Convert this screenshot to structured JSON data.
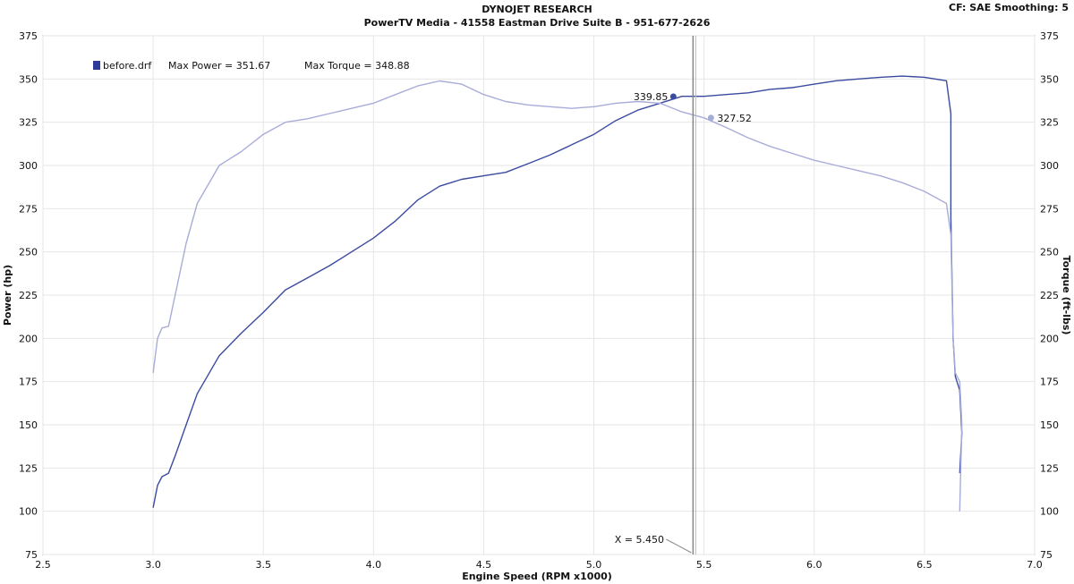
{
  "header": {
    "title": "DYNOJET RESEARCH",
    "subtitle": "PowerTV Media - 41558 Eastman Drive Suite B - 951-677-2626",
    "settings": "CF: SAE  Smoothing: 5"
  },
  "legend": {
    "run_name": "before.drf",
    "max_power_text": "Max Power = 351.67",
    "max_torque_text": "Max Torque = 348.88"
  },
  "cursor": {
    "x_value": 5.45,
    "x_label": "X = 5.450",
    "power_readout": "339.85",
    "torque_readout": "327.52"
  },
  "colors": {
    "power": "#3a4aa0",
    "torque": "#a8acd8",
    "cursor": "#888888",
    "legend_box": "#2c3a9a"
  },
  "chart_data": {
    "type": "line",
    "xlabel": "Engine Speed (RPM x1000)",
    "ylabel": "Power (hp)",
    "y2label": "Torque (ft-lbs)",
    "xlim": [
      2.5,
      7.0
    ],
    "ylim": [
      75,
      375
    ],
    "y2lim": [
      75,
      375
    ],
    "x_ticks": [
      "2.5",
      "3.0",
      "3.5",
      "4.0",
      "4.5",
      "5.0",
      "5.5",
      "6.0",
      "6.5",
      "7.0"
    ],
    "y_ticks": [
      "75",
      "100",
      "125",
      "150",
      "175",
      "200",
      "225",
      "250",
      "275",
      "300",
      "325",
      "350",
      "375"
    ],
    "grid": true,
    "series": [
      {
        "name": "Power",
        "axis": "left",
        "points": [
          [
            3.0,
            102
          ],
          [
            3.02,
            115
          ],
          [
            3.04,
            120
          ],
          [
            3.07,
            122
          ],
          [
            3.1,
            132
          ],
          [
            3.15,
            150
          ],
          [
            3.2,
            168
          ],
          [
            3.3,
            190
          ],
          [
            3.4,
            203
          ],
          [
            3.5,
            215
          ],
          [
            3.6,
            228
          ],
          [
            3.7,
            235
          ],
          [
            3.8,
            242
          ],
          [
            3.9,
            250
          ],
          [
            4.0,
            258
          ],
          [
            4.1,
            268
          ],
          [
            4.2,
            280
          ],
          [
            4.3,
            288
          ],
          [
            4.4,
            292
          ],
          [
            4.5,
            294
          ],
          [
            4.6,
            296
          ],
          [
            4.7,
            301
          ],
          [
            4.8,
            306
          ],
          [
            4.9,
            312
          ],
          [
            5.0,
            318
          ],
          [
            5.1,
            326
          ],
          [
            5.2,
            332
          ],
          [
            5.3,
            336
          ],
          [
            5.4,
            340
          ],
          [
            5.5,
            340
          ],
          [
            5.6,
            341
          ],
          [
            5.7,
            342
          ],
          [
            5.8,
            344
          ],
          [
            5.9,
            345
          ],
          [
            6.0,
            347
          ],
          [
            6.1,
            349
          ],
          [
            6.2,
            350
          ],
          [
            6.3,
            351
          ],
          [
            6.4,
            351.67
          ],
          [
            6.5,
            351
          ],
          [
            6.6,
            349
          ],
          [
            6.62,
            330
          ],
          [
            6.62,
            270
          ],
          [
            6.63,
            200
          ],
          [
            6.64,
            178
          ],
          [
            6.66,
            170
          ],
          [
            6.67,
            145
          ],
          [
            6.66,
            122
          ]
        ]
      },
      {
        "name": "Torque",
        "axis": "right",
        "points": [
          [
            3.0,
            180
          ],
          [
            3.02,
            200
          ],
          [
            3.04,
            206
          ],
          [
            3.07,
            207
          ],
          [
            3.1,
            225
          ],
          [
            3.15,
            255
          ],
          [
            3.2,
            278
          ],
          [
            3.3,
            300
          ],
          [
            3.4,
            308
          ],
          [
            3.5,
            318
          ],
          [
            3.6,
            325
          ],
          [
            3.7,
            327
          ],
          [
            3.8,
            330
          ],
          [
            3.9,
            333
          ],
          [
            4.0,
            336
          ],
          [
            4.1,
            341
          ],
          [
            4.2,
            346
          ],
          [
            4.3,
            348.88
          ],
          [
            4.4,
            347
          ],
          [
            4.5,
            341
          ],
          [
            4.6,
            337
          ],
          [
            4.7,
            335
          ],
          [
            4.8,
            334
          ],
          [
            4.9,
            333
          ],
          [
            5.0,
            334
          ],
          [
            5.1,
            336
          ],
          [
            5.2,
            337
          ],
          [
            5.3,
            336
          ],
          [
            5.4,
            331
          ],
          [
            5.5,
            327.5
          ],
          [
            5.6,
            322
          ],
          [
            5.7,
            316
          ],
          [
            5.8,
            311
          ],
          [
            5.9,
            307
          ],
          [
            6.0,
            303
          ],
          [
            6.1,
            300
          ],
          [
            6.2,
            297
          ],
          [
            6.3,
            294
          ],
          [
            6.4,
            290
          ],
          [
            6.5,
            285
          ],
          [
            6.6,
            278
          ],
          [
            6.62,
            260
          ],
          [
            6.63,
            200
          ],
          [
            6.64,
            180
          ],
          [
            6.66,
            175
          ],
          [
            6.67,
            150
          ],
          [
            6.66,
            100
          ]
        ]
      }
    ]
  }
}
